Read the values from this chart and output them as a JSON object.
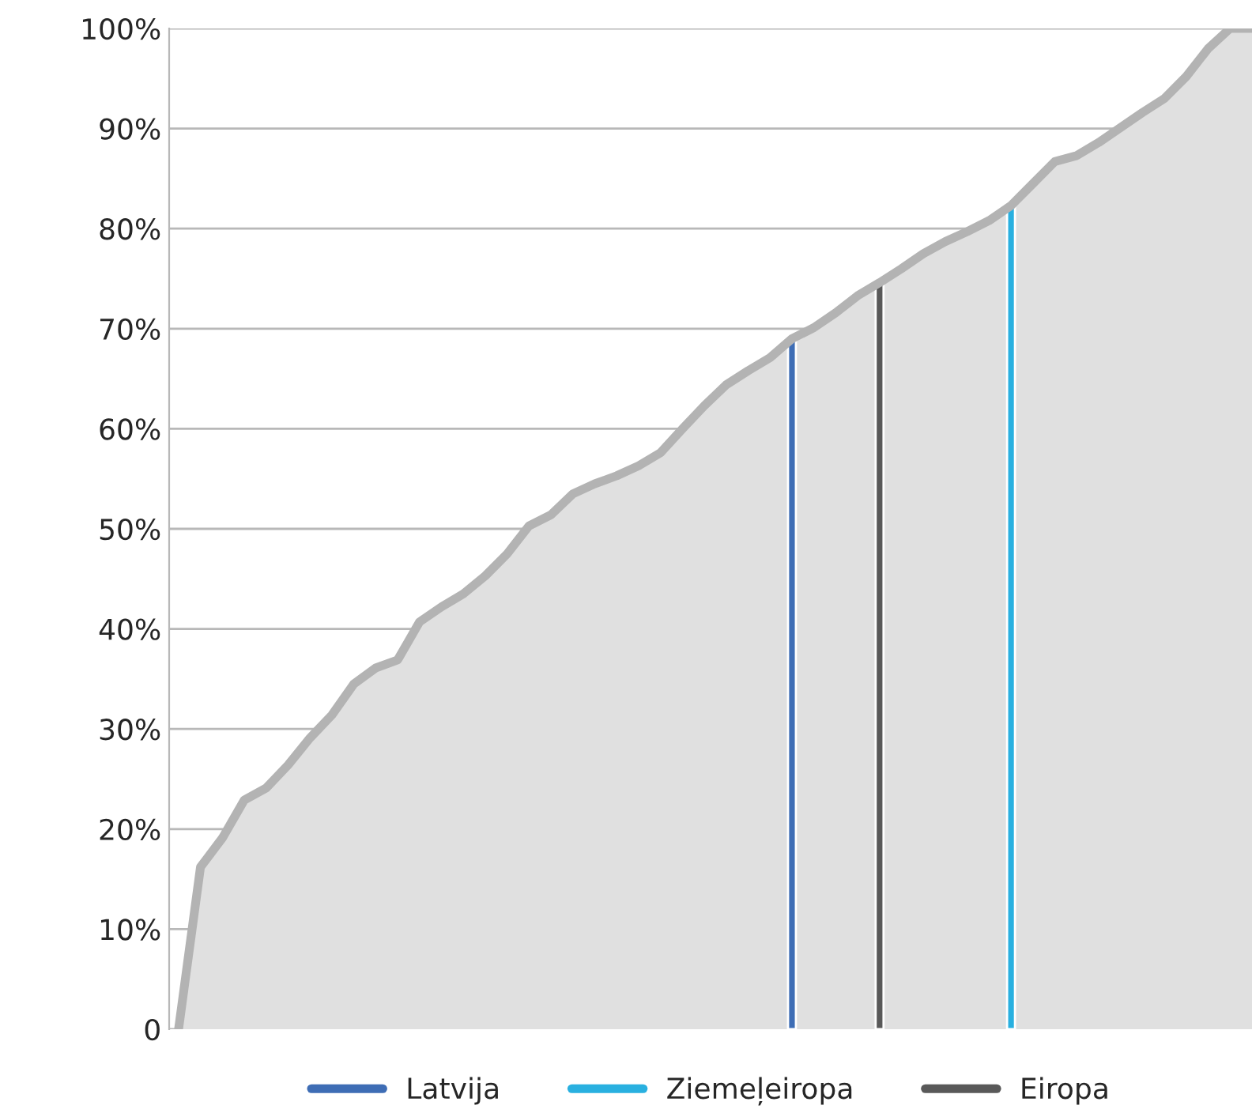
{
  "chart_data": {
    "type": "area",
    "categories": [
      null,
      null,
      null,
      null,
      null,
      null,
      null,
      null,
      null,
      null,
      null,
      null,
      null,
      null,
      null,
      null,
      null,
      null,
      null,
      null,
      null,
      null,
      null,
      null,
      null,
      null,
      null,
      null,
      null,
      null,
      null,
      null,
      null,
      null,
      null,
      null,
      null,
      null,
      null,
      null,
      null,
      null,
      null,
      null,
      null,
      null,
      null,
      null,
      null,
      null
    ],
    "series": [
      {
        "color": "#b3b3b3",
        "values": [
          0,
          16.2,
          19.1,
          22.9,
          24.1,
          26.4,
          29.1,
          31.4,
          34.5,
          36.1,
          36.9,
          40.7,
          42.2,
          43.5,
          45.3,
          47.5,
          50.3,
          51.4,
          53.5,
          54.5,
          55.3,
          56.3,
          57.6,
          60,
          62.3,
          64.4,
          65.8,
          67.1,
          69,
          70.1,
          71.6,
          73.3,
          74.6,
          76,
          77.5,
          78.7,
          79.7,
          80.8,
          82.3,
          84.5,
          86.7,
          87.3,
          88.6,
          90.1,
          91.6,
          93,
          95.2,
          98,
          100,
          100
        ]
      },
      {
        "type": "bar",
        "name": "Latvija",
        "color": "#3e6db5",
        "values": [
          null,
          null,
          null,
          null,
          null,
          null,
          null,
          null,
          null,
          null,
          null,
          null,
          null,
          null,
          null,
          null,
          null,
          null,
          null,
          null,
          null,
          null,
          null,
          null,
          null,
          null,
          null,
          null,
          69,
          null,
          null,
          null,
          null,
          null,
          null,
          null,
          null,
          null,
          null,
          null,
          null,
          null,
          null,
          null,
          null,
          null,
          null,
          null,
          null,
          null
        ]
      },
      {
        "type": "bar",
        "name": "Ziemeļeiropa",
        "color": "#29b0e0",
        "values": [
          null,
          null,
          null,
          null,
          null,
          null,
          null,
          null,
          null,
          null,
          null,
          null,
          null,
          null,
          null,
          null,
          null,
          null,
          null,
          null,
          null,
          null,
          null,
          null,
          null,
          null,
          null,
          null,
          null,
          null,
          null,
          null,
          null,
          null,
          null,
          null,
          null,
          null,
          82.3,
          null,
          null,
          null,
          null,
          null,
          null,
          null,
          null,
          null,
          null,
          null
        ]
      },
      {
        "type": "bar",
        "name": "Eiropa",
        "color": "#595959",
        "values": [
          null,
          null,
          null,
          null,
          null,
          null,
          null,
          null,
          null,
          null,
          null,
          null,
          null,
          null,
          null,
          null,
          null,
          null,
          null,
          null,
          null,
          null,
          null,
          null,
          null,
          null,
          null,
          null,
          null,
          null,
          null,
          null,
          74.6,
          null,
          null,
          null,
          null,
          null,
          null,
          null,
          null,
          null,
          null,
          null,
          null,
          null,
          null,
          null,
          null,
          null
        ]
      }
    ],
    "ylim": [
      0,
      100
    ],
    "yticks": [
      {
        "value": 0,
        "label": "0"
      },
      {
        "value": 10,
        "label": "10%"
      },
      {
        "value": 20,
        "label": "20%"
      },
      {
        "value": 30,
        "label": "30%"
      },
      {
        "value": 40,
        "label": "40%"
      },
      {
        "value": 50,
        "label": "50%"
      },
      {
        "value": 60,
        "label": "60%"
      },
      {
        "value": 70,
        "label": "70%"
      },
      {
        "value": 80,
        "label": "80%"
      },
      {
        "value": 90,
        "label": "90%"
      },
      {
        "value": 100,
        "label": "100%"
      }
    ],
    "tick_labels": "y",
    "grid": "y",
    "legend": "bottom"
  }
}
